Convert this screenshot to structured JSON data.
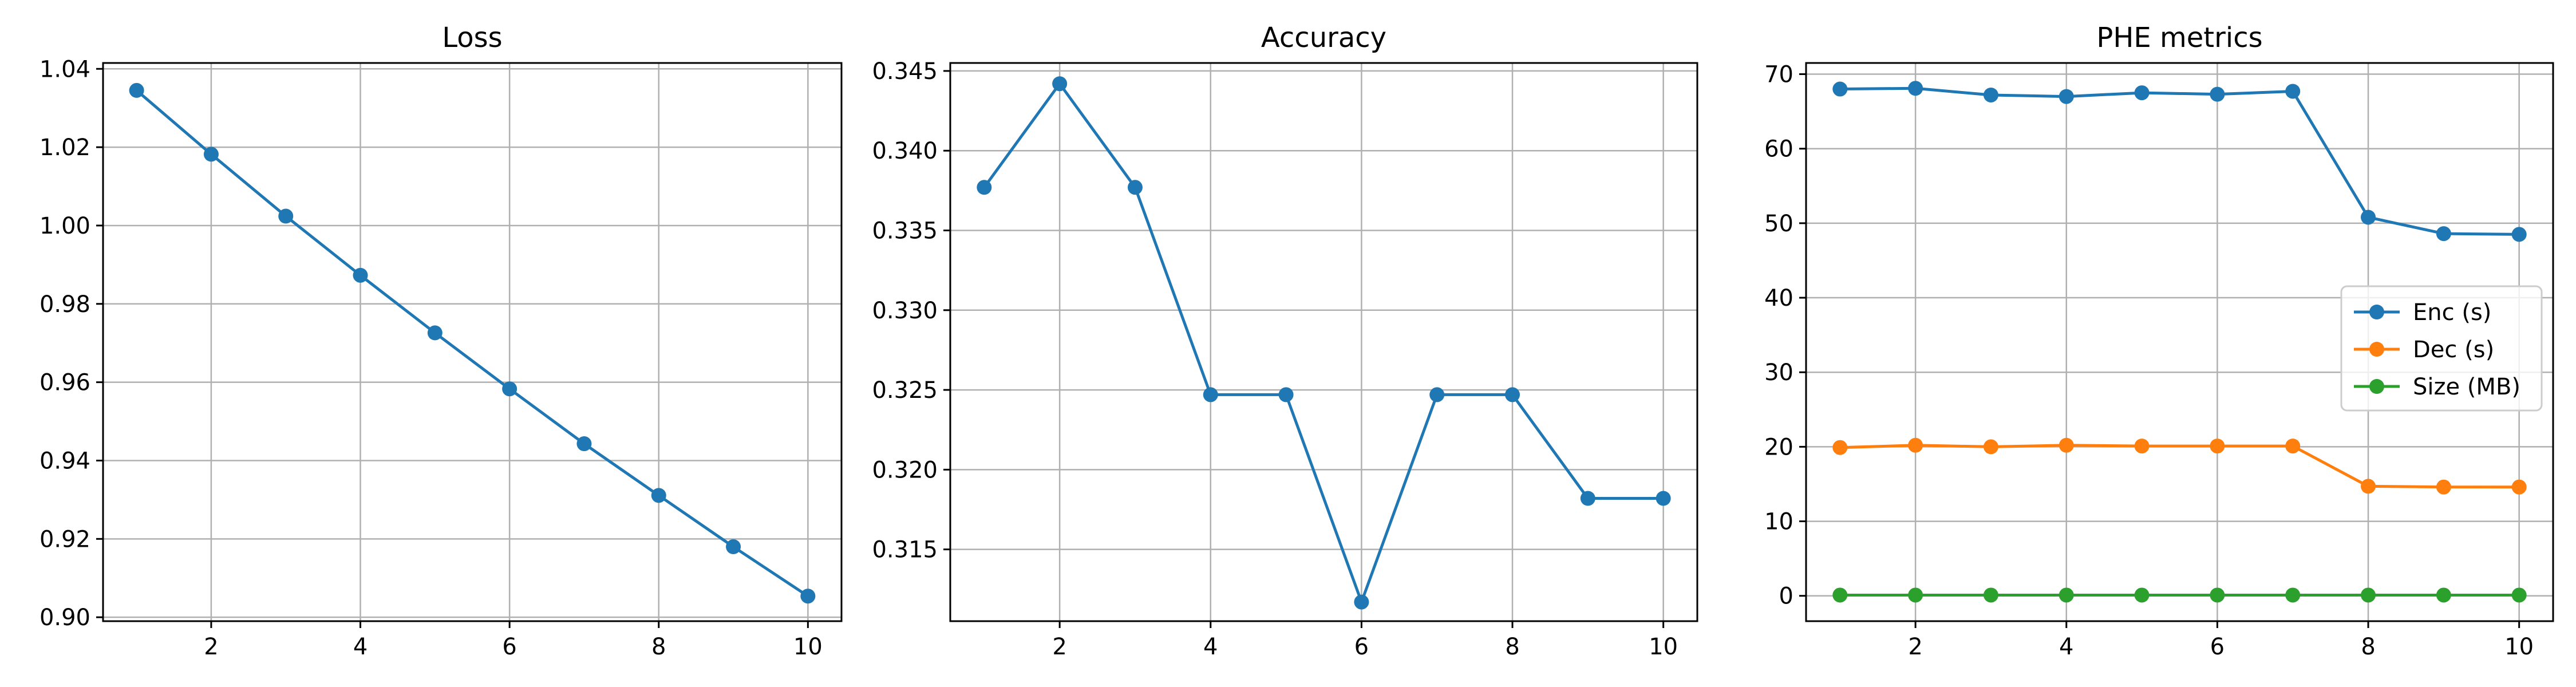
{
  "colors": {
    "blue": "#1f77b4",
    "orange": "#ff7f0e",
    "green": "#2ca02c",
    "grid": "#b0b0b0",
    "axes": "#000000",
    "legend_border": "#cccccc"
  },
  "chart_data": [
    {
      "type": "line",
      "title": "Loss",
      "xlabel": "",
      "ylabel": "",
      "x": [
        1,
        2,
        3,
        4,
        5,
        6,
        7,
        8,
        9,
        10
      ],
      "xlim": [
        0.55,
        10.45
      ],
      "ylim": [
        0.899,
        1.0415
      ],
      "xticks": [
        2,
        4,
        6,
        8,
        10
      ],
      "yticks": [
        0.9,
        0.92,
        0.94,
        0.96,
        0.98,
        1.0,
        1.02,
        1.04
      ],
      "ytick_labels": [
        "0.90",
        "0.92",
        "0.94",
        "0.96",
        "0.98",
        "1.00",
        "1.02",
        "1.04"
      ],
      "grid": true,
      "legend": null,
      "series": [
        {
          "color": "blue",
          "marker": "o",
          "values": [
            1.0345,
            1.0182,
            1.0024,
            0.9873,
            0.9726,
            0.9583,
            0.9443,
            0.9311,
            0.918,
            0.9054
          ]
        }
      ]
    },
    {
      "type": "line",
      "title": "Accuracy",
      "xlabel": "",
      "ylabel": "",
      "x": [
        1,
        2,
        3,
        4,
        5,
        6,
        7,
        8,
        9,
        10
      ],
      "xlim": [
        0.55,
        10.45
      ],
      "ylim": [
        0.3105,
        0.3455
      ],
      "xticks": [
        2,
        4,
        6,
        8,
        10
      ],
      "yticks": [
        0.315,
        0.32,
        0.325,
        0.33,
        0.335,
        0.34,
        0.345
      ],
      "ytick_labels": [
        "0.315",
        "0.320",
        "0.325",
        "0.330",
        "0.335",
        "0.340",
        "0.345"
      ],
      "grid": true,
      "legend": null,
      "series": [
        {
          "color": "blue",
          "marker": "o",
          "values": [
            0.3377,
            0.3442,
            0.3377,
            0.3247,
            0.3247,
            0.3117,
            0.3247,
            0.3247,
            0.3182,
            0.3182
          ]
        }
      ]
    },
    {
      "type": "line",
      "title": "PHE metrics",
      "xlabel": "",
      "ylabel": "",
      "x": [
        1,
        2,
        3,
        4,
        5,
        6,
        7,
        8,
        9,
        10
      ],
      "xlim": [
        0.55,
        10.45
      ],
      "ylim": [
        -3.4,
        71.5
      ],
      "xticks": [
        2,
        4,
        6,
        8,
        10
      ],
      "yticks": [
        0,
        10,
        20,
        30,
        40,
        50,
        60,
        70
      ],
      "ytick_labels": [
        "0",
        "10",
        "20",
        "30",
        "40",
        "50",
        "60",
        "70"
      ],
      "grid": true,
      "legend": "center-right",
      "series": [
        {
          "name": "Enc (s)",
          "color": "blue",
          "marker": "o",
          "values": [
            68.0,
            68.1,
            67.2,
            67.0,
            67.5,
            67.3,
            67.7,
            50.8,
            48.6,
            48.5
          ]
        },
        {
          "name": "Dec (s)",
          "color": "orange",
          "marker": "o",
          "values": [
            19.9,
            20.2,
            20.0,
            20.2,
            20.1,
            20.1,
            20.1,
            14.7,
            14.6,
            14.6
          ]
        },
        {
          "name": "Size (MB)",
          "color": "green",
          "marker": "o",
          "values": [
            0.1,
            0.1,
            0.1,
            0.1,
            0.1,
            0.1,
            0.1,
            0.1,
            0.1,
            0.1
          ]
        }
      ]
    }
  ]
}
